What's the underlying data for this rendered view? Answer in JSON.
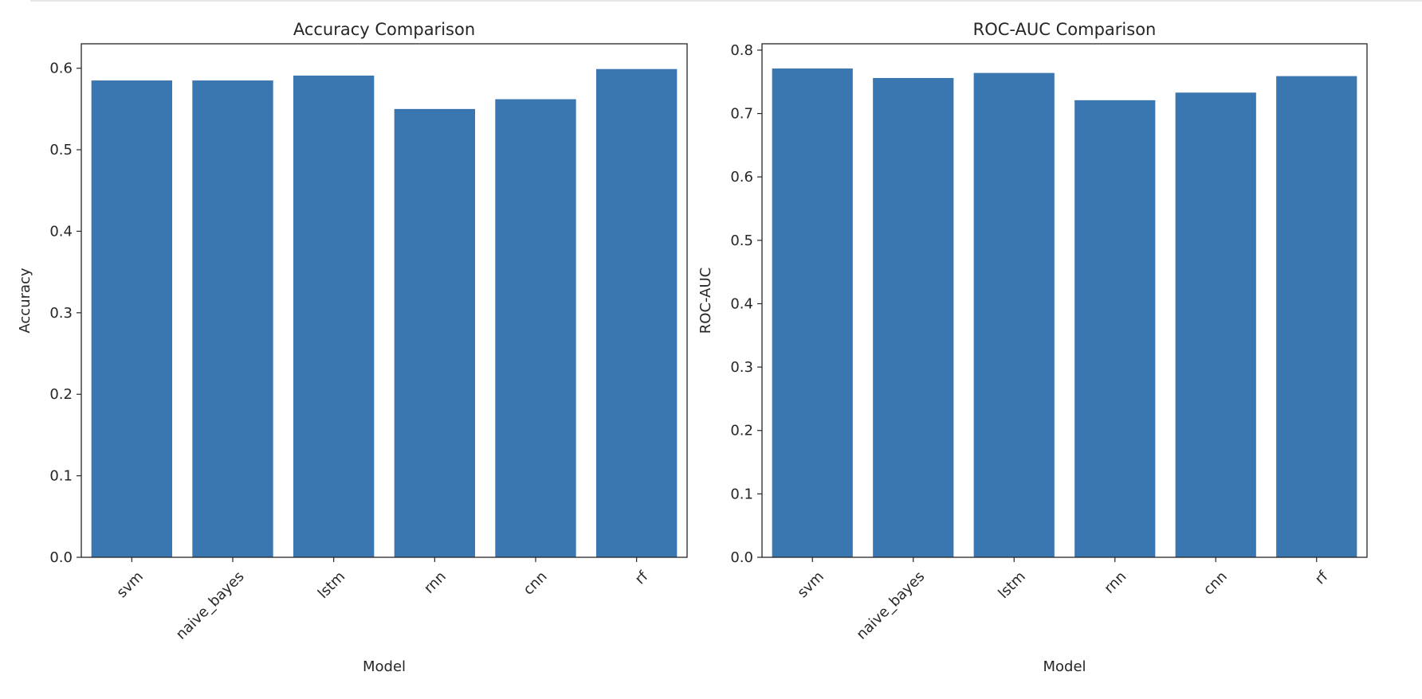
{
  "chart_data": [
    {
      "type": "bar",
      "title": "Accuracy Comparison",
      "xlabel": "Model",
      "ylabel": "Accuracy",
      "categories": [
        "svm",
        "naive_bayes",
        "lstm",
        "rnn",
        "cnn",
        "rf"
      ],
      "values": [
        0.585,
        0.585,
        0.591,
        0.55,
        0.562,
        0.599
      ],
      "ylim": [
        0,
        0.63
      ],
      "yticks": [
        0.0,
        0.1,
        0.2,
        0.3,
        0.4,
        0.5,
        0.6
      ],
      "ytick_labels": [
        "0.0",
        "0.1",
        "0.2",
        "0.3",
        "0.4",
        "0.5",
        "0.6"
      ],
      "bar_color": "#3a76af",
      "grid": false,
      "legend": "none"
    },
    {
      "type": "bar",
      "title": "ROC-AUC Comparison",
      "xlabel": "Model",
      "ylabel": "ROC-AUC",
      "categories": [
        "svm",
        "naive_bayes",
        "lstm",
        "rnn",
        "cnn",
        "rf"
      ],
      "values": [
        0.771,
        0.756,
        0.764,
        0.721,
        0.733,
        0.759
      ],
      "ylim": [
        0,
        0.81
      ],
      "yticks": [
        0.0,
        0.1,
        0.2,
        0.3,
        0.4,
        0.5,
        0.6,
        0.7,
        0.8
      ],
      "ytick_labels": [
        "0.0",
        "0.1",
        "0.2",
        "0.3",
        "0.4",
        "0.5",
        "0.6",
        "0.7",
        "0.8"
      ],
      "bar_color": "#3a76af",
      "grid": false,
      "legend": "none"
    }
  ]
}
